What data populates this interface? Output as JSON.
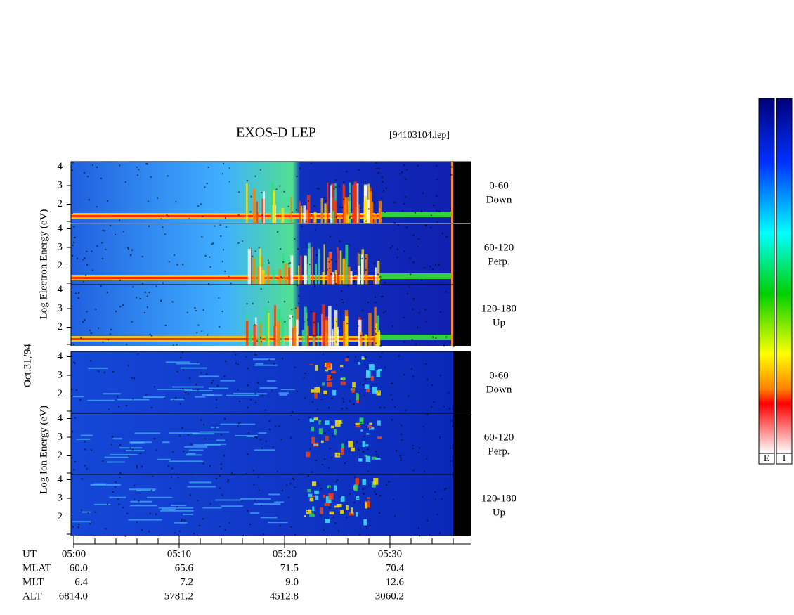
{
  "title": "EXOS-D LEP",
  "file": "[94103104.lep]",
  "date": "Oct.31,'94",
  "axis_labels": {
    "electron": "Log Electron Energy (eV)",
    "ion": "Log Ion Energy (eV)"
  },
  "panels": [
    {
      "group": "electron",
      "yticks": [
        2,
        3,
        4
      ],
      "angle": "0-60",
      "direction": "Down"
    },
    {
      "group": "electron",
      "yticks": [
        2,
        3,
        4
      ],
      "angle": "60-120",
      "direction": "Perp."
    },
    {
      "group": "electron",
      "yticks": [
        2,
        3,
        4
      ],
      "angle": "120-180",
      "direction": "Up"
    },
    {
      "group": "ion",
      "yticks": [
        2,
        3,
        4
      ],
      "angle": "0-60",
      "direction": "Down"
    },
    {
      "group": "ion",
      "yticks": [
        2,
        3,
        4
      ],
      "angle": "60-120",
      "direction": "Perp."
    },
    {
      "group": "ion",
      "yticks": [
        2,
        3,
        4
      ],
      "angle": "120-180",
      "direction": "Up"
    }
  ],
  "ephemeris": [
    [
      "UT",
      "05:00",
      "05:10",
      "05:20",
      "05:30"
    ],
    [
      "MLAT",
      "60.0",
      "65.6",
      "71.5",
      "70.4"
    ],
    [
      "MLT",
      "6.4",
      "7.2",
      "9.0",
      "12.6"
    ],
    [
      "ALT",
      "6814.0",
      "5781.2",
      "4512.8",
      "3060.2"
    ]
  ],
  "colorbar_labels": [
    "E",
    "I"
  ]
}
